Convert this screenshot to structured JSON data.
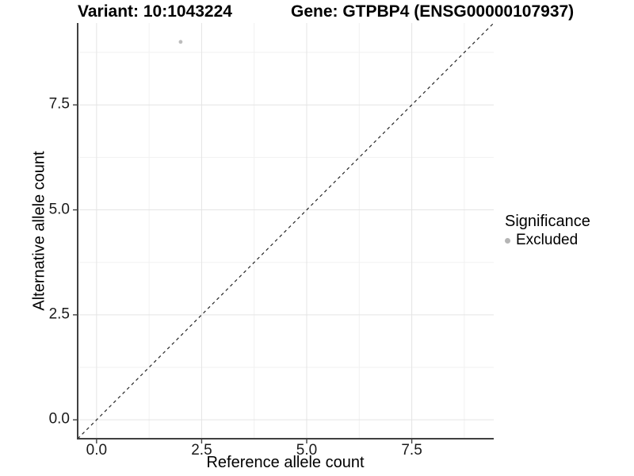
{
  "title": {
    "variant": "Variant: 10:1043224",
    "gene": "Gene: GTPBP4 (ENSG00000107937)"
  },
  "axes": {
    "x": {
      "label": "Reference allele count",
      "tick_labels": [
        "0.0",
        "2.5",
        "5.0",
        "7.5"
      ]
    },
    "y": {
      "label": "Alternative allele count",
      "tick_labels": [
        "0.0",
        "2.5",
        "5.0",
        "7.5"
      ]
    }
  },
  "legend": {
    "title": "Significance",
    "items": [
      {
        "label": "Excluded",
        "color": "#b5b5b5"
      }
    ]
  },
  "chart_data": {
    "type": "scatter",
    "title": "Variant: 10:1043224    Gene: GTPBP4 (ENSG00000107937)",
    "xlabel": "Reference allele count",
    "ylabel": "Alternative allele count",
    "xlim": [
      -0.45,
      9.45
    ],
    "ylim": [
      -0.45,
      9.45
    ],
    "x_major_ticks": [
      0,
      2.5,
      5,
      7.5
    ],
    "y_major_ticks": [
      0,
      2.5,
      5,
      7.5
    ],
    "x_minor_ticks": [
      1.25,
      3.75,
      6.25,
      8.75
    ],
    "y_minor_ticks": [
      1.25,
      3.75,
      6.25,
      8.75
    ],
    "grid": true,
    "legend_position": "right",
    "series": [
      {
        "name": "Excluded",
        "color": "#bdbdbd",
        "points": [
          {
            "x": 2,
            "y": 9
          }
        ]
      }
    ],
    "reference_line": {
      "type": "identity",
      "slope": 1,
      "intercept": 0,
      "style": "dashed",
      "color": "#262626"
    }
  },
  "colors": {
    "background": "#ffffff",
    "grid_major": "#e4e4e4",
    "grid_minor": "#f1f1f1",
    "axis_line": "#404040",
    "tick_mark": "#404040",
    "tick_text": "#1a1a1a"
  }
}
